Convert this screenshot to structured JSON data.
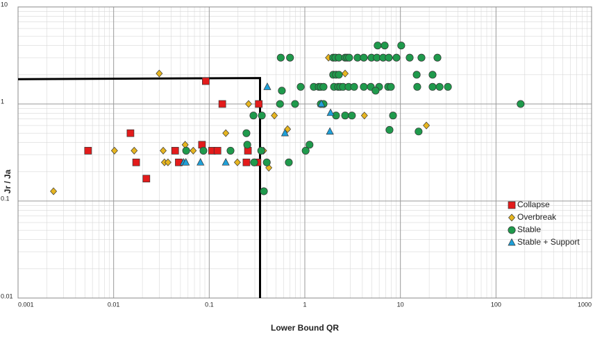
{
  "chart_data": {
    "type": "scatter",
    "x_label": "Lower Bound QR",
    "y_label": "Jr / Ja",
    "xscale": "log",
    "yscale": "log",
    "xlim": [
      0.001,
      1000
    ],
    "ylim": [
      0.01,
      10
    ],
    "xticks": [
      0.001,
      0.01,
      0.1,
      1,
      10,
      100,
      1000
    ],
    "yticks": [
      0.01,
      0.1,
      1,
      10
    ],
    "grid": true,
    "minor_grid": true,
    "legend": "lower right",
    "boundary": {
      "x": [
        0.001,
        0.34,
        0.34
      ],
      "y": [
        1.8,
        1.85,
        0.01
      ],
      "color": "#000000"
    },
    "series": [
      {
        "name": "Collapse",
        "marker": "square",
        "color": "#e31b1b",
        "x": [
          0.0054,
          0.015,
          0.0172,
          0.022,
          0.044,
          0.048,
          0.092,
          0.084,
          0.107,
          0.122,
          0.137,
          0.245,
          0.254,
          0.33,
          0.32
        ],
        "values": [
          0.33,
          0.5,
          0.25,
          0.17,
          0.33,
          0.25,
          1.72,
          0.38,
          0.33,
          0.33,
          1,
          0.25,
          0.33,
          1,
          0.25
        ]
      },
      {
        "name": "Overbreak",
        "marker": "diamond",
        "color": "#e6b520",
        "x": [
          0.00235,
          0.0102,
          0.0164,
          0.03,
          0.033,
          0.034,
          0.037,
          0.056,
          0.058,
          0.068,
          0.149,
          0.197,
          0.258,
          0.37,
          0.42,
          0.48,
          0.66,
          1.77,
          2.64,
          4.2,
          18.7
        ],
        "values": [
          0.126,
          0.33,
          0.33,
          2.06,
          0.33,
          0.25,
          0.25,
          0.38,
          0.33,
          0.33,
          0.5,
          0.25,
          1,
          0.33,
          0.22,
          0.76,
          0.55,
          3,
          2.06,
          0.76,
          0.6
        ]
      },
      {
        "name": "Stable",
        "marker": "circle",
        "color": "#1f9a4c",
        "x": [
          0.56,
          0.7,
          1.98,
          2.09,
          2.27,
          2.64,
          2.77,
          2.91,
          3.56,
          4.14,
          4.98,
          5.68,
          6.6,
          7.56,
          9.1,
          12.5,
          16.6,
          24.4,
          5.78,
          6.85,
          10.2,
          1.98,
          2.12,
          2.27,
          14.8,
          21.7,
          0.905,
          1.24,
          1.4,
          1.47,
          1.57,
          2.02,
          2.23,
          2.35,
          2.51,
          2.87,
          3.28,
          4.14,
          4.9,
          5.99,
          7.44,
          7.95,
          15,
          21.7,
          25.7,
          31.4,
          0.575,
          5.5,
          0.55,
          0.79,
          1.47,
          1.57,
          181,
          0.29,
          0.355,
          2.12,
          2.64,
          3.11,
          8.37,
          7.69,
          15.5,
          0.245,
          0.25,
          1.12,
          0.0574,
          0.087,
          0.167,
          0.35,
          1.02,
          0.295,
          0.4,
          0.68,
          0.373
        ],
        "values": [
          3,
          3,
          3,
          3,
          3,
          3,
          3,
          3,
          3,
          3,
          3,
          3,
          3,
          3,
          3,
          3,
          3,
          3,
          4,
          4,
          4,
          2,
          2,
          2,
          2,
          2,
          1.5,
          1.5,
          1.5,
          1.5,
          1.5,
          1.5,
          1.5,
          1.5,
          1.5,
          1.5,
          1.5,
          1.5,
          1.5,
          1.5,
          1.5,
          1.5,
          1.5,
          1.5,
          1.5,
          1.5,
          1.37,
          1.37,
          1,
          1,
          1,
          1,
          1,
          0.76,
          0.76,
          0.76,
          0.76,
          0.76,
          0.76,
          0.54,
          0.52,
          0.5,
          0.38,
          0.38,
          0.33,
          0.33,
          0.33,
          0.33,
          0.33,
          0.25,
          0.25,
          0.25,
          0.126
        ]
      },
      {
        "name": "Stable + Support",
        "marker": "triangle",
        "color": "#1fa0d8",
        "x": [
          0.054,
          0.057,
          0.081,
          0.149,
          0.405,
          0.62,
          1.49,
          1.83,
          1.86
        ],
        "values": [
          0.25,
          0.25,
          0.25,
          0.25,
          1.5,
          0.5,
          1,
          0.52,
          0.81
        ]
      }
    ]
  }
}
